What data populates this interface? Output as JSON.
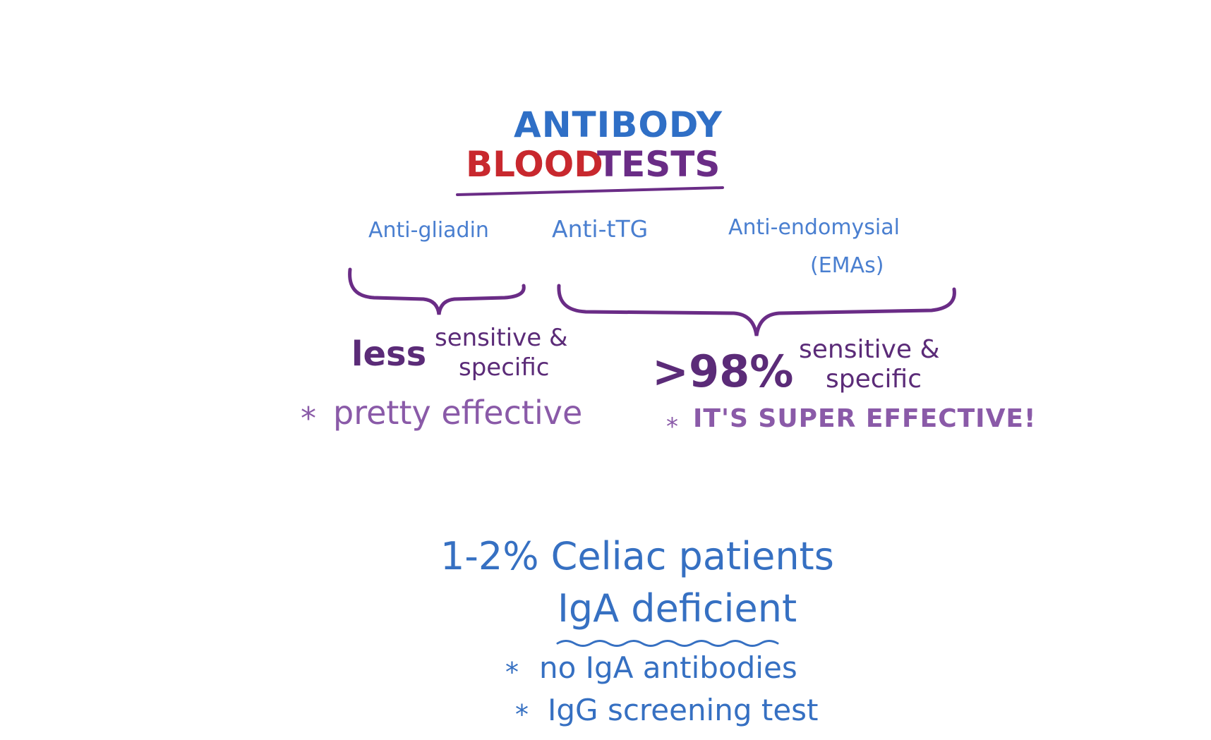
{
  "title": {
    "line1": "ANTIBODY",
    "line2_red": "BLOOD",
    "line2_purple": "TESTS"
  },
  "tests": {
    "anti_gliadin": "Anti-gliadin",
    "anti_ttg": "Anti-tTG",
    "anti_endomysial": "Anti-endomysial",
    "emas": "(EMAs)"
  },
  "left_group": {
    "less": "less",
    "sensitive": "sensitive &",
    "specific": "specific",
    "note_star": "*",
    "note": "pretty effective"
  },
  "right_group": {
    "percent": ">98%",
    "sensitive": "sensitive &",
    "specific": "specific",
    "note_star": "*",
    "note": "IT'S SUPER EFFECTIVE!"
  },
  "bottom": {
    "stat": "1-2% Celiac patients",
    "iga": "IgA deficient",
    "bullet1_star": "*",
    "bullet1": "no IgA antibodies",
    "bullet2_star": "*",
    "bullet2": "IgG screening test"
  },
  "colors": {
    "blue": "#2f6fc6",
    "red": "#c8282e",
    "purple": "#6a2c86"
  }
}
